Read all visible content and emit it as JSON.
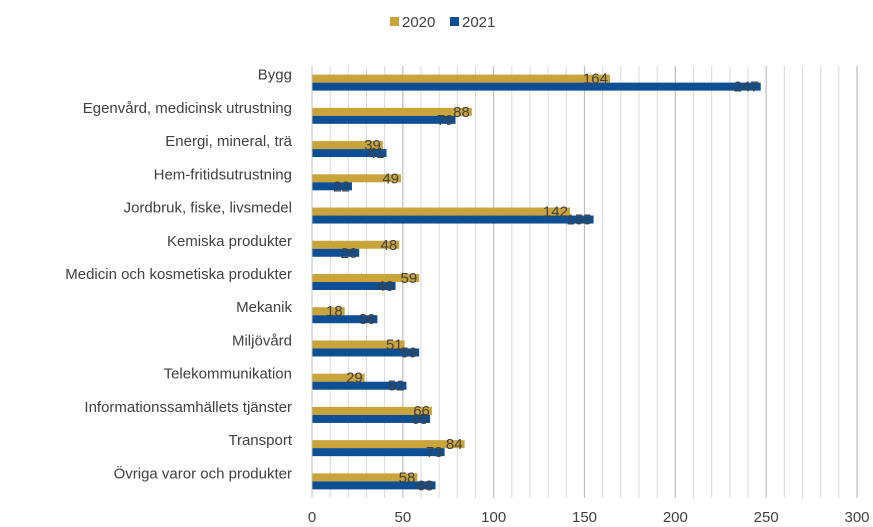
{
  "chart_data": {
    "type": "bar",
    "orientation": "horizontal",
    "categories": [
      "Bygg",
      "Egenvård, medicinsk utrustning",
      "Energi, mineral, trä",
      "Hem-fritidsutrustning",
      "Jordbruk, fiske, livsmedel",
      "Kemiska produkter",
      "Medicin och kosmetiska produkter",
      "Mekanik",
      "Miljövård",
      "Telekommunikation",
      "Informationssamhällets tjänster",
      "Transport",
      "Övriga varor och produkter"
    ],
    "series": [
      {
        "name": "2020",
        "color": "#C9A43A",
        "values": [
          164,
          88,
          39,
          49,
          142,
          48,
          59,
          18,
          51,
          29,
          66,
          84,
          58
        ]
      },
      {
        "name": "2021",
        "color": "#0E4E92",
        "values": [
          247,
          79,
          41,
          22,
          155,
          26,
          46,
          36,
          59,
          52,
          65,
          73,
          68
        ]
      }
    ],
    "xlim": [
      0,
      300
    ],
    "xticks": [
      0,
      50,
      100,
      150,
      200,
      250,
      300
    ],
    "gridlines": "vertical",
    "legend_position": "top",
    "title": "",
    "xlabel": "",
    "ylabel": ""
  }
}
